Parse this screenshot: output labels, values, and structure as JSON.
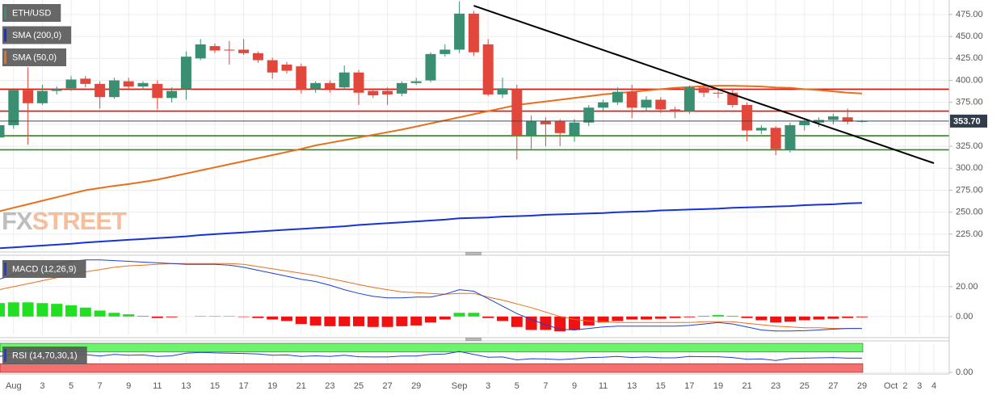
{
  "chart_data": [
    {
      "type": "candlestick",
      "categories": [
        null,
        "Aug",
        null,
        "3",
        null,
        "5",
        null,
        "7",
        null,
        "9",
        null,
        "11",
        null,
        "13",
        null,
        "15",
        null,
        "17",
        null,
        "19",
        null,
        "21",
        null,
        "23",
        null,
        "25",
        null,
        "27",
        null,
        "29",
        null,
        null,
        "Sep",
        null,
        "3",
        null,
        "5",
        null,
        "7",
        null,
        "9",
        null,
        "11",
        null,
        "13",
        null,
        "15",
        null,
        "17",
        null,
        "19",
        null,
        "21",
        null,
        "23",
        null,
        "25",
        null,
        "27",
        null,
        "29",
        null,
        "Oct",
        "2",
        "3",
        "4"
      ],
      "series": [
        {
          "name": "ETH/USD",
          "up_color": "#3a8f72",
          "down_color": "#e2473b",
          "open": [
            335,
            349,
            389,
            374,
            388,
            391,
            402,
            396,
            381,
            399,
            393,
            396,
            380,
            390,
            425,
            439,
            435,
            435,
            431,
            423,
            418,
            416,
            390,
            397,
            392,
            409,
            388,
            388,
            385,
            397,
            400,
            430,
            435,
            476,
            441,
            384,
            390,
            337,
            354,
            354,
            337,
            352,
            369,
            375,
            387,
            369,
            378,
            367,
            365,
            392,
            386,
            386,
            372,
            343,
            346,
            321,
            349,
            352,
            355,
            358,
            353.5,
            null,
            null,
            null,
            null,
            null
          ],
          "high": [
            355,
            391,
            415,
            395,
            393,
            405,
            405,
            399,
            403,
            403,
            399,
            400,
            392,
            433,
            447,
            442,
            445,
            447,
            433,
            426,
            421,
            419,
            399,
            400,
            417,
            412,
            391,
            392,
            399,
            403,
            432,
            441,
            490,
            479,
            447,
            403,
            395,
            360,
            358,
            356,
            356,
            372,
            378,
            392,
            395,
            382,
            381,
            370,
            394,
            395,
            389,
            391,
            375,
            349,
            348,
            352,
            357,
            358,
            362,
            368,
            355,
            null,
            null,
            null,
            null,
            null
          ],
          "low": [
            330,
            345,
            327,
            372,
            384,
            388,
            392,
            368,
            379,
            390,
            389,
            367,
            375,
            378,
            423,
            431,
            418,
            429,
            420,
            402,
            408,
            385,
            386,
            386,
            390,
            372,
            380,
            372,
            382,
            395,
            398,
            427,
            431,
            428,
            382,
            380,
            310,
            322,
            325,
            325,
            330,
            348,
            366,
            372,
            357,
            365,
            363,
            357,
            362,
            381,
            380,
            369,
            331,
            339,
            315,
            318,
            343,
            347,
            350,
            350,
            352,
            null,
            null,
            null,
            null,
            null
          ],
          "close": [
            349,
            389,
            374,
            388,
            390,
            401,
            396,
            381,
            400,
            393,
            397,
            380,
            388,
            427,
            441,
            434,
            434,
            431,
            423,
            409,
            411,
            389,
            397,
            390,
            409,
            386,
            383,
            384,
            397,
            399,
            430,
            435,
            476,
            432,
            384,
            391,
            337,
            354,
            350,
            340,
            352,
            369,
            375,
            387,
            369,
            378,
            367,
            365,
            392,
            386,
            385,
            372,
            343,
            346,
            322,
            349,
            354,
            355,
            359,
            353,
            353.7,
            null,
            null,
            null,
            null,
            null
          ]
        },
        {
          "name": "SMA (200,0)",
          "color": "#1733d6",
          "values": [
            209,
            210,
            211,
            212,
            213,
            214,
            215.5,
            216.5,
            217.5,
            218.5,
            219.5,
            220.5,
            221.5,
            222.5,
            224,
            225,
            226,
            227,
            228,
            229,
            230,
            231,
            232,
            233,
            234,
            235.5,
            236.5,
            237.5,
            238.5,
            239.5,
            240.5,
            241.5,
            243,
            243.5,
            244,
            245,
            245.5,
            246,
            247,
            247.5,
            248,
            248.5,
            249,
            250,
            250.5,
            251,
            252,
            252.5,
            253,
            253.5,
            254,
            255,
            255.5,
            256,
            256.5,
            257,
            258,
            258.5,
            259,
            260,
            260.5,
            null,
            null,
            null,
            null,
            null
          ]
        },
        {
          "name": "SMA (50,0)",
          "color": "#e8701c",
          "values": [
            251,
            255,
            259,
            263,
            267,
            271,
            275,
            277.5,
            280,
            282,
            284.5,
            287,
            290.5,
            294,
            297.5,
            301,
            304.5,
            308,
            311.5,
            315,
            318.5,
            322,
            326,
            329,
            332,
            335,
            338,
            341,
            344,
            347.5,
            351,
            354.5,
            358,
            361.5,
            365,
            368.5,
            372,
            374,
            376,
            378,
            380,
            382,
            384,
            385.5,
            387,
            388.5,
            390,
            391.5,
            392.5,
            393.5,
            394,
            394,
            393.5,
            393,
            392,
            391.5,
            390,
            389,
            387.5,
            386,
            385,
            null,
            null,
            null,
            null,
            null
          ]
        }
      ],
      "trendline": {
        "color": "#000000",
        "values": [
          null,
          null,
          null,
          null,
          null,
          null,
          null,
          null,
          null,
          null,
          null,
          null,
          null,
          null,
          null,
          null,
          null,
          null,
          null,
          null,
          null,
          null,
          null,
          null,
          null,
          null,
          null,
          null,
          null,
          null,
          null,
          null,
          null,
          485,
          479.4,
          473.8,
          468.2,
          462.6,
          457,
          451.4,
          445.8,
          440.2,
          434.6,
          429,
          423.4,
          417.8,
          412.2,
          406.6,
          401,
          395.4,
          389.8,
          384.2,
          378.6,
          373,
          367.4,
          361.8,
          356.2,
          350.6,
          345,
          339.4,
          333.8,
          328.2,
          322.6,
          317,
          311.4,
          305.8
        ]
      },
      "levels": [
        {
          "value": 390,
          "color": "#d9140f"
        },
        {
          "value": 365,
          "color": "#d9140f"
        },
        {
          "value": 337,
          "color": "#2a8a1c"
        },
        {
          "value": 321,
          "color": "#2a8a1c"
        }
      ],
      "last_price": {
        "value": 353.7,
        "label": "353.70"
      },
      "watermark": [
        "FX",
        "STREET"
      ],
      "ylim": [
        206.5,
        491.5
      ],
      "yticks": [
        {
          "value": 225,
          "label": "225.00"
        },
        {
          "value": 250,
          "label": "250.00"
        },
        {
          "value": 275,
          "label": "275.00"
        },
        {
          "value": 300,
          "label": "300.00"
        },
        {
          "value": 325,
          "label": "325.00"
        },
        {
          "value": 350,
          "label": "350.00"
        },
        {
          "value": 375,
          "label": "375.00"
        },
        {
          "value": 400,
          "label": "400.00"
        },
        {
          "value": 425,
          "label": "425.00"
        },
        {
          "value": 450,
          "label": "450.00"
        },
        {
          "value": 475,
          "label": "475.00"
        }
      ],
      "grid": true
    },
    {
      "type": "macd",
      "title": "MACD (12,26,9)",
      "macd": {
        "color": "#1f3fd1",
        "values": [
          25,
          28,
          31,
          33,
          35,
          37,
          38,
          38,
          37.5,
          37,
          36.5,
          36,
          35.5,
          35,
          35,
          35,
          34.5,
          33,
          31,
          29,
          27,
          25,
          23.5,
          21,
          18,
          15.5,
          13.5,
          12.5,
          12.5,
          13,
          13,
          15,
          18,
          17,
          12,
          7,
          2,
          -2,
          -5.5,
          -8.5,
          -9,
          -8,
          -7,
          -6.5,
          -6.5,
          -6.5,
          -6.5,
          -6.5,
          -6,
          -5,
          -4,
          -5,
          -7,
          -9,
          -9.7,
          -9.7,
          -9.5,
          -9,
          -8.5,
          -8,
          -8,
          null,
          null,
          null,
          null,
          null
        ]
      },
      "signal": {
        "color": "#e8701c",
        "values": [
          18,
          20,
          22,
          24,
          26,
          28,
          30,
          31.5,
          33,
          34,
          34.5,
          35,
          35.5,
          35.5,
          35.5,
          35.5,
          35.5,
          35,
          33.5,
          32,
          30.5,
          29,
          27.5,
          25.5,
          23.5,
          21.5,
          19.5,
          18,
          16.5,
          16,
          15.5,
          15,
          15.5,
          15.5,
          13,
          11,
          8.5,
          6,
          3,
          0,
          -2,
          -3,
          -3.5,
          -4,
          -4,
          -4,
          -4,
          -4,
          -4,
          -3.5,
          -3.5,
          -3.5,
          -4.5,
          -5.5,
          -6.5,
          -7,
          -7.5,
          -7.5,
          -8,
          -8,
          -8,
          null,
          null,
          null,
          null,
          null
        ]
      },
      "histogram": {
        "up_color": "#21e021",
        "down_color": "#f01212",
        "values": [
          9,
          9.5,
          9.5,
          9,
          8.5,
          7.5,
          6,
          4,
          2.5,
          1.5,
          0.5,
          -1,
          -0.5,
          0,
          0.3,
          0.3,
          0.3,
          -0.3,
          -1,
          -2,
          -3,
          -5,
          -6,
          -6.5,
          -6.5,
          -6.5,
          -7,
          -7,
          -6.5,
          -6,
          -4,
          -2,
          2.5,
          2.5,
          -1,
          -3,
          -7,
          -9,
          -9,
          -10,
          -9,
          -6,
          -4,
          -3,
          -2,
          -2,
          -1.5,
          -1,
          -0.5,
          0.5,
          1,
          0.5,
          -1,
          -2.5,
          -4,
          -3.5,
          -2.5,
          -2,
          -1.5,
          -1,
          -0.5,
          null,
          null,
          null,
          null,
          null
        ]
      },
      "ylim": [
        -12,
        40
      ],
      "yticks": [
        {
          "value": 0,
          "label": "0.00"
        },
        {
          "value": 20,
          "label": "20.00"
        }
      ],
      "grid": true
    },
    {
      "type": "rsi",
      "title": "RSI (14,70,30,1)",
      "color": "#1f3fd1",
      "values": [
        55,
        62,
        58,
        61,
        62,
        64,
        61,
        56,
        62,
        59,
        60,
        55,
        57,
        66,
        69,
        67,
        66,
        65,
        63,
        59,
        60,
        55,
        57,
        55,
        59,
        54,
        53,
        53,
        56,
        56,
        62,
        63,
        72,
        62,
        52,
        53,
        43,
        47,
        46,
        44,
        47,
        51,
        52,
        55,
        51,
        53,
        50,
        50,
        55,
        54,
        54,
        51,
        45,
        46,
        41,
        48,
        49,
        50,
        51,
        49,
        49,
        null,
        null,
        null,
        null,
        null
      ],
      "upper": 70,
      "lower": 30,
      "upper_color": "#6cf46c",
      "lower_color": "#f47070",
      "ylim": [
        0,
        100
      ],
      "yticks": [
        {
          "value": 0,
          "label": "0.00"
        }
      ],
      "grid": true
    }
  ]
}
